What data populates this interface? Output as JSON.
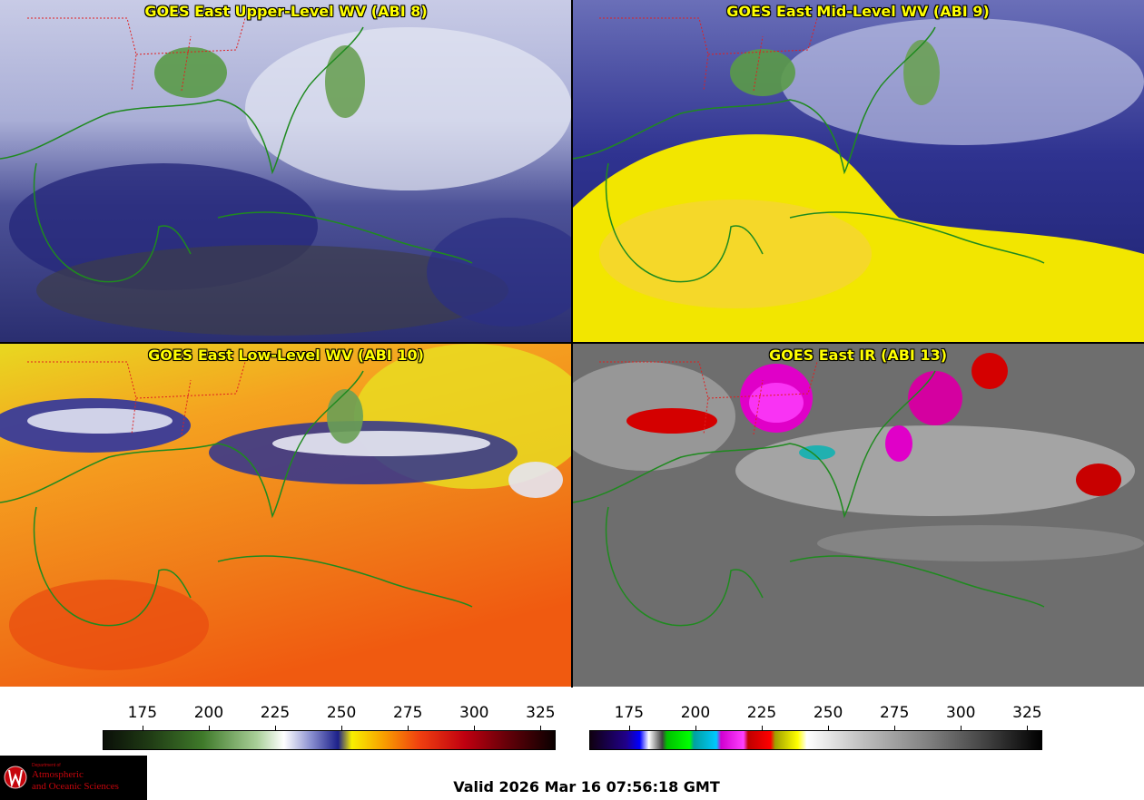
{
  "panels": [
    {
      "title": "GOES East Upper-Level WV (ABI 8)",
      "scheme": "wv-upper"
    },
    {
      "title": "GOES East Mid-Level WV (ABI 9)",
      "scheme": "wv-mid"
    },
    {
      "title": "GOES East Low-Level WV (ABI 10)",
      "scheme": "wv-low"
    },
    {
      "title": "GOES East IR (ABI 13)",
      "scheme": "ir"
    }
  ],
  "colorbars": [
    {
      "name": "wv-colorbar",
      "ticks": [
        "175",
        "200",
        "225",
        "250",
        "275",
        "300",
        "325"
      ],
      "min": 160,
      "max": 330
    },
    {
      "name": "ir-colorbar",
      "ticks": [
        "175",
        "200",
        "225",
        "250",
        "275",
        "300",
        "325"
      ],
      "min": 160,
      "max": 330
    }
  ],
  "logo": {
    "dept": "Department of",
    "line1": "Atmospheric",
    "line2": "and Oceanic Sciences"
  },
  "valid_time": "Valid 2026 Mar 16 07:56:18 GMT",
  "colors": {
    "coastline": "#1f8a1f",
    "state_borders": "#e02020",
    "title_text": "#ffff00"
  }
}
